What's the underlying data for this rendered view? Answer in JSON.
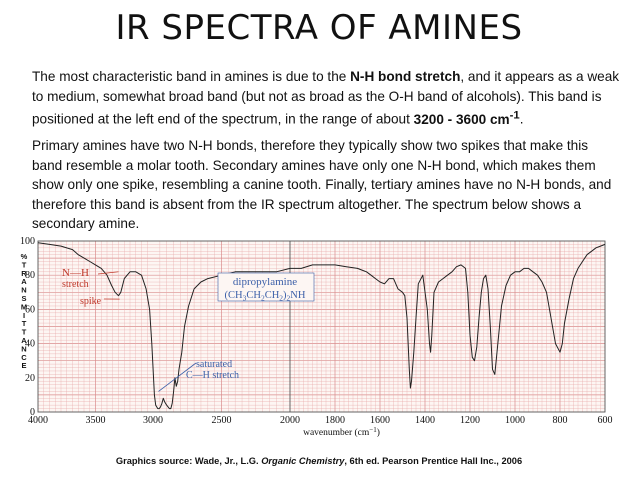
{
  "slide": {
    "title": "IR SPECTRA OF AMINES",
    "paragraph1": {
      "text_before": "The most characteristic band in amines is due to the ",
      "bold1": "N-H bond stretch",
      "text_middle": ", and it appears as a weak to medium, somewhat broad band (but not as broad as the O-H band of alcohols). This band is positioned at the left end of the spectrum, in the range of about ",
      "bold2": "3200 - 3600 cm",
      "bold2_sup": "-1",
      "text_after": "."
    },
    "paragraph2": "Primary amines have two N-H bonds, therefore they typically show two spikes that make this band resemble a molar tooth. Secondary amines have only one N-H bond, which makes them show only one spike, resembling a canine tooth. Finally, tertiary amines have no N-H bonds, and therefore this band is absent from the IR spectrum altogether. The spectrum below shows a secondary amine.",
    "source": {
      "prefix": "Graphics source: Wade, Jr., L.G. ",
      "italic": "Organic Chemistry",
      "suffix": ", 6th ed. Pearson Prentice Hall Inc., 2006"
    }
  },
  "colors": {
    "grid": "#e6a7a7",
    "gridMajor": "#d98c8c",
    "annotation": "#c0392b",
    "compound": "#3b5fa8",
    "trace": "#222222",
    "chartBackground": "#fdf6f3"
  },
  "chart_data": {
    "type": "line",
    "xlabel": "wavenumber (cm",
    "xlabel_sup": "−1",
    "xlabel_close": ")",
    "ylabel": "%TRANSMITTANCE",
    "xlim": [
      4000,
      600
    ],
    "ylim": [
      0,
      100
    ],
    "x_ticks": [
      {
        "value": 4000,
        "label": "4000"
      },
      {
        "value": 3500,
        "label": "3500"
      },
      {
        "value": 3000,
        "label": "3000"
      },
      {
        "value": 2500,
        "label": "2500"
      },
      {
        "value": 2000,
        "label": "2000"
      },
      {
        "value": 1800,
        "label": "1800"
      },
      {
        "value": 1600,
        "label": "1600"
      },
      {
        "value": 1400,
        "label": "1400"
      },
      {
        "value": 1200,
        "label": "1200"
      },
      {
        "value": 1000,
        "label": "1000"
      },
      {
        "value": 800,
        "label": "800"
      },
      {
        "value": 600,
        "label": "600"
      }
    ],
    "y_ticks": [
      {
        "value": 0,
        "label": "0"
      },
      {
        "value": 20,
        "label": "20"
      },
      {
        "value": 40,
        "label": "40"
      },
      {
        "value": 60,
        "label": "60"
      },
      {
        "value": 80,
        "label": "80"
      },
      {
        "value": 100,
        "label": "100"
      }
    ],
    "grid": true,
    "scale_change_at": 2000,
    "annotations": {
      "nh_stretch": {
        "line1": "N—H",
        "line2": "stretch",
        "x": 3300,
        "y": 82
      },
      "spike": {
        "text": "spike",
        "x": 3290,
        "y": 66
      },
      "ch_stretch": {
        "line1": "saturated",
        "line2": "C—H stretch",
        "x": 2960,
        "y": 12
      },
      "compound": {
        "name": "dipropylamine",
        "formula_parts": [
          "(CH",
          "3",
          "CH",
          "2",
          "CH",
          "2",
          ")",
          "2",
          "NH"
        ]
      }
    },
    "series": [
      {
        "x": [
          4000,
          3900,
          3800,
          3700,
          3650,
          3600,
          3550,
          3500,
          3450,
          3400,
          3360,
          3330,
          3300,
          3280,
          3250,
          3200,
          3150,
          3100,
          3060,
          3030,
          3010,
          2990,
          2980,
          2965,
          2955,
          2945,
          2935,
          2925,
          2915,
          2900,
          2880,
          2870,
          2860,
          2850,
          2840,
          2830,
          2820,
          2810,
          2790,
          2770,
          2740,
          2700,
          2650,
          2600,
          2500,
          2400,
          2300,
          2200,
          2100,
          2000,
          1950,
          1900,
          1850,
          1800,
          1750,
          1700,
          1680,
          1660,
          1640,
          1620,
          1600,
          1580,
          1560,
          1540,
          1520,
          1500,
          1490,
          1480,
          1470,
          1465,
          1460,
          1450,
          1440,
          1430,
          1410,
          1390,
          1380,
          1375,
          1370,
          1360,
          1340,
          1320,
          1300,
          1280,
          1260,
          1240,
          1220,
          1210,
          1200,
          1190,
          1180,
          1170,
          1160,
          1150,
          1140,
          1130,
          1120,
          1110,
          1100,
          1090,
          1080,
          1060,
          1040,
          1020,
          1000,
          980,
          960,
          940,
          920,
          900,
          880,
          860,
          840,
          820,
          800,
          790,
          780,
          760,
          740,
          720,
          700,
          680,
          660,
          640,
          620,
          600
        ],
        "y": [
          99,
          98,
          97,
          95,
          92,
          90,
          88,
          86,
          84,
          80,
          74,
          70,
          68,
          70,
          78,
          82,
          82,
          80,
          72,
          60,
          40,
          10,
          4,
          2,
          2,
          3,
          5,
          8,
          6,
          4,
          2,
          2,
          5,
          12,
          20,
          15,
          18,
          25,
          35,
          50,
          62,
          72,
          76,
          78,
          80,
          82,
          82,
          82,
          82,
          84,
          84,
          86,
          86,
          86,
          85,
          84,
          83,
          82,
          80,
          78,
          76,
          75,
          78,
          78,
          72,
          70,
          68,
          55,
          25,
          14,
          18,
          35,
          55,
          75,
          80,
          60,
          40,
          35,
          45,
          70,
          76,
          78,
          80,
          82,
          85,
          86,
          84,
          70,
          45,
          32,
          30,
          38,
          55,
          70,
          78,
          80,
          72,
          50,
          25,
          22,
          35,
          62,
          74,
          80,
          82,
          82,
          84,
          84,
          82,
          80,
          76,
          70,
          55,
          40,
          35,
          40,
          52,
          66,
          78,
          84,
          88,
          92,
          94,
          96,
          97,
          98
        ]
      }
    ]
  }
}
